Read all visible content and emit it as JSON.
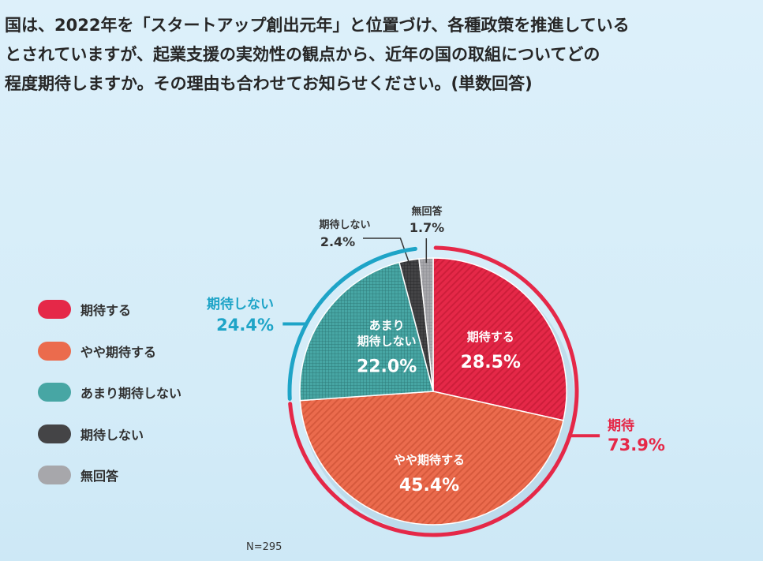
{
  "question": {
    "lines": [
      "国は、2022年を「スタートアップ創出元年」と位置づけ、各種政策を推進している",
      "とされていますが、起業支援の実効性の観点から、近年の国の取組についてどの",
      "程度期待しますか。その理由も合わせてお知らせください。(単数回答)"
    ]
  },
  "chart_data": {
    "type": "pie",
    "title": "",
    "start": "12 o'clock",
    "direction": "clockwise",
    "slices": [
      {
        "label": "期待する",
        "value": 28.5,
        "display": "28.5%",
        "color": "#e52848",
        "label_lines": [
          "期待する"
        ]
      },
      {
        "label": "やや期待する",
        "value": 45.4,
        "display": "45.4%",
        "color": "#eb6b4d",
        "label_lines": [
          "やや期待する"
        ]
      },
      {
        "label": "あまり期待しない",
        "value": 22.0,
        "display": "22.0%",
        "color": "#47a6a4",
        "label_lines": [
          "あまり",
          "期待しない"
        ]
      },
      {
        "label": "期待しない",
        "value": 2.4,
        "display": "2.4%",
        "color": "#444446",
        "label_lines": [
          "期待しない"
        ]
      },
      {
        "label": "無回答",
        "value": 1.7,
        "display": "1.7%",
        "color": "#a7a7ab",
        "label_lines": [
          "無回答"
        ]
      }
    ],
    "groups": [
      {
        "label": "期待",
        "value": 73.9,
        "display": "73.9%",
        "color": "#e52848"
      },
      {
        "label": "期待しない",
        "value": 24.4,
        "display": "24.4%",
        "color": "#1ea4c7"
      }
    ],
    "legend": {
      "position": "left",
      "items": [
        {
          "label": "期待する",
          "color": "#e52848"
        },
        {
          "label": "やや期待する",
          "color": "#eb6b4d"
        },
        {
          "label": "あまり期待しない",
          "color": "#47a6a4"
        },
        {
          "label": "期待しない",
          "color": "#444446"
        },
        {
          "label": "無回答",
          "color": "#a7a7ab"
        }
      ]
    },
    "note": "N=295"
  }
}
